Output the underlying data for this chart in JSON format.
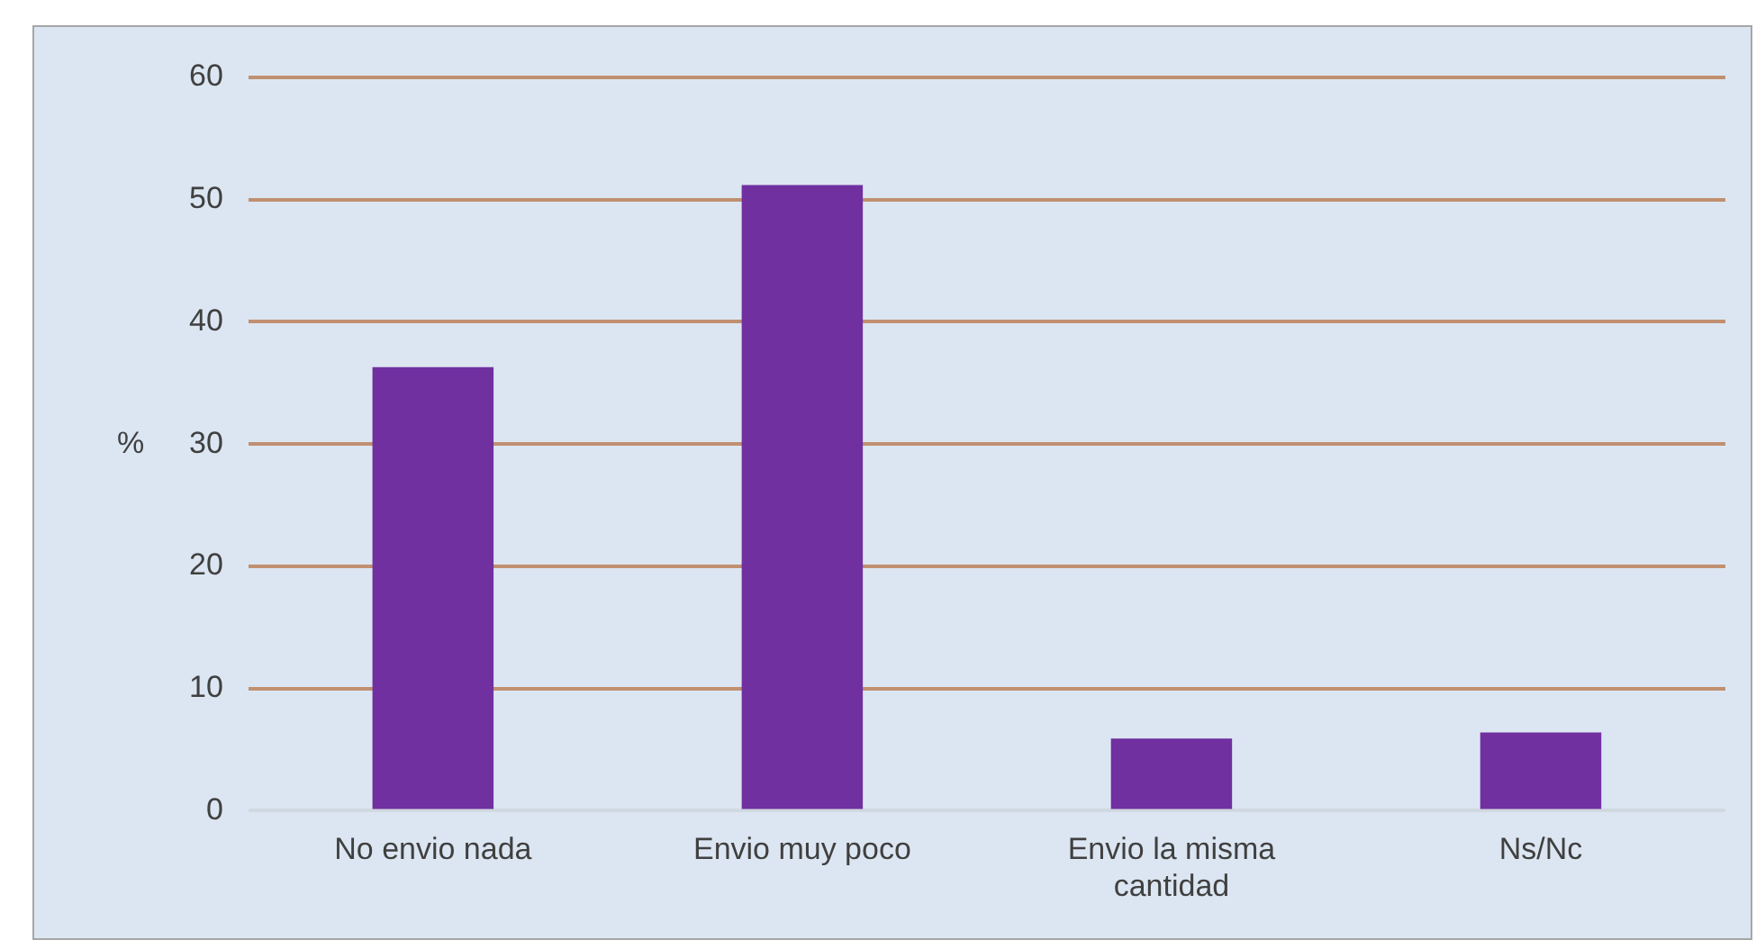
{
  "chart_data": {
    "type": "bar",
    "ylabel": "%",
    "categories": [
      "No envio nada",
      "Envio muy poco",
      "Envio la misma cantidad",
      "Ns/Nc"
    ],
    "values": [
      36.3,
      51.2,
      5.9,
      6.4
    ],
    "color": "#7030a0",
    "ylim": [
      0,
      60
    ],
    "yticks": [
      0,
      10,
      20,
      30,
      40,
      50,
      60
    ],
    "grid": "y",
    "legend": false
  }
}
